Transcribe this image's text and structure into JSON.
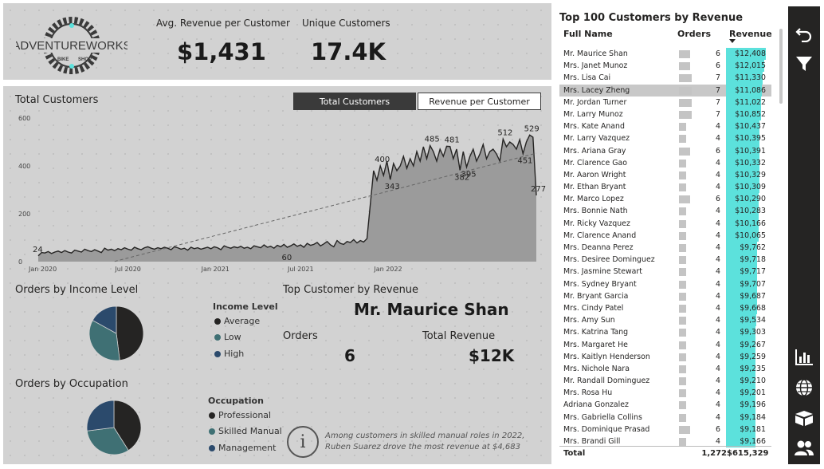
{
  "kpis": {
    "avg_revenue_label": "Avg. Revenue per Customer",
    "avg_revenue_value": "$1,431",
    "unique_customers_label": "Unique Customers",
    "unique_customers_value": "17.4K"
  },
  "logo": {
    "brand": "ADVENTUREWORKS",
    "sub_left": "BIKE",
    "sub_right": "SHOP"
  },
  "total_customers": {
    "title": "Total Customers",
    "toggle_active": "Total Customers",
    "toggle_inactive": "Revenue per Customer"
  },
  "chart_data": [
    {
      "type": "area",
      "title": "Total Customers",
      "x_ticks": [
        "Jan 2020",
        "Jul 2020",
        "Jan 2021",
        "Jul 2021",
        "Jan 2022"
      ],
      "y_ticks": [
        "0",
        "200",
        "400",
        "600"
      ],
      "ylim": [
        0,
        600
      ],
      "grid": false,
      "trendline": true,
      "values": [
        24,
        38,
        36,
        42,
        34,
        40,
        44,
        38,
        46,
        40,
        36,
        48,
        44,
        40,
        52,
        46,
        42,
        50,
        44,
        38,
        56,
        48,
        52,
        46,
        54,
        50,
        58,
        52,
        48,
        60,
        54,
        50,
        58,
        62,
        56,
        52,
        58,
        54,
        60,
        56,
        50,
        62,
        58,
        52,
        56,
        48,
        60,
        54,
        58,
        52,
        56,
        60,
        54,
        62,
        58,
        50,
        66,
        60,
        56,
        62,
        58,
        64,
        56,
        60,
        54,
        66,
        62,
        58,
        70,
        60,
        64,
        56,
        68,
        62,
        72,
        60,
        66,
        74,
        64,
        70,
        60,
        76,
        68,
        72,
        80,
        66,
        74,
        84,
        70,
        62,
        88,
        76,
        72,
        84,
        80,
        92,
        78,
        88,
        82,
        96,
        240,
        380,
        340,
        400,
        360,
        420,
        343,
        410,
        380,
        400,
        440,
        390,
        430,
        400,
        460,
        420,
        480,
        430,
        485,
        460,
        420,
        470,
        440,
        482,
        481,
        430,
        470,
        382,
        460,
        395,
        440,
        470,
        420,
        450,
        490,
        430,
        460,
        470,
        450,
        420,
        512,
        480,
        500,
        490,
        470,
        510,
        451,
        500,
        529,
        520,
        277
      ],
      "annotations": [
        {
          "label": "24",
          "value": 24
        },
        {
          "label": "60",
          "value": 60
        },
        {
          "label": "400",
          "value": 400
        },
        {
          "label": "343",
          "value": 343
        },
        {
          "label": "485",
          "value": 485
        },
        {
          "label": "382",
          "value": 382
        },
        {
          "label": "481",
          "value": 481
        },
        {
          "label": "395",
          "value": 395
        },
        {
          "label": "512",
          "value": 512
        },
        {
          "label": "451",
          "value": 451
        },
        {
          "label": "529",
          "value": 529
        },
        {
          "label": "277",
          "value": 277
        }
      ]
    },
    {
      "type": "pie",
      "title": "Orders by Income Level",
      "series": [
        {
          "name": "Average",
          "value": 48,
          "color": "#252423"
        },
        {
          "name": "Low",
          "value": 35,
          "color": "#3f7074"
        },
        {
          "name": "High",
          "value": 17,
          "color": "#2b4a6c"
        }
      ]
    },
    {
      "type": "pie",
      "title": "Orders by Occupation",
      "series": [
        {
          "name": "Professional",
          "value": 41,
          "color": "#252423"
        },
        {
          "name": "Skilled Manual",
          "value": 32,
          "color": "#3f7074"
        },
        {
          "name": "Management",
          "value": 27,
          "color": "#2b4a6c"
        }
      ]
    }
  ],
  "income": {
    "title": "Orders by Income Level",
    "legend_title": "Income Level",
    "items": [
      {
        "label": "Average",
        "color": "#252423"
      },
      {
        "label": "Low",
        "color": "#3f7074"
      },
      {
        "label": "High",
        "color": "#2b4a6c"
      }
    ]
  },
  "occupation": {
    "title": "Orders by Occupation",
    "legend_title": "Occupation",
    "items": [
      {
        "label": "Professional",
        "color": "#252423"
      },
      {
        "label": "Skilled Manual",
        "color": "#3f7074"
      },
      {
        "label": "Management",
        "color": "#2b4a6c"
      }
    ]
  },
  "top_customer": {
    "title": "Top Customer by Revenue",
    "name": "Mr. Maurice Shan",
    "orders_label": "Orders",
    "orders_value": "6",
    "revenue_label": "Total Revenue",
    "revenue_value": "$12K"
  },
  "insight": {
    "icon": "info-icon",
    "text": "Among customers in skilled manual roles in 2022, Ruben Suarez drove the most revenue at $4,683"
  },
  "table": {
    "title": "Top 100 Customers by Revenue",
    "headers": {
      "name": "Full Name",
      "orders": "Orders",
      "revenue": "Revenue"
    },
    "selected_row": 3,
    "rows": [
      {
        "name": "Mr. Maurice Shan",
        "orders": "6",
        "revenue": "$12,408",
        "rev": 12408,
        "ord": 6
      },
      {
        "name": "Mrs. Janet Munoz",
        "orders": "6",
        "revenue": "$12,015",
        "rev": 12015,
        "ord": 6
      },
      {
        "name": "Mrs. Lisa Cai",
        "orders": "7",
        "revenue": "$11,330",
        "rev": 11330,
        "ord": 7
      },
      {
        "name": "Mrs. Lacey Zheng",
        "orders": "7",
        "revenue": "$11,086",
        "rev": 11086,
        "ord": 7
      },
      {
        "name": "Mr. Jordan Turner",
        "orders": "7",
        "revenue": "$11,022",
        "rev": 11022,
        "ord": 7
      },
      {
        "name": "Mr. Larry Munoz",
        "orders": "7",
        "revenue": "$10,852",
        "rev": 10852,
        "ord": 7
      },
      {
        "name": "Mrs. Kate Anand",
        "orders": "4",
        "revenue": "$10,437",
        "rev": 10437,
        "ord": 4
      },
      {
        "name": "Mr. Larry Vazquez",
        "orders": "4",
        "revenue": "$10,395",
        "rev": 10395,
        "ord": 4
      },
      {
        "name": "Mrs. Ariana Gray",
        "orders": "6",
        "revenue": "$10,391",
        "rev": 10391,
        "ord": 6
      },
      {
        "name": "Mr. Clarence Gao",
        "orders": "4",
        "revenue": "$10,332",
        "rev": 10332,
        "ord": 4
      },
      {
        "name": "Mr. Aaron Wright",
        "orders": "4",
        "revenue": "$10,329",
        "rev": 10329,
        "ord": 4
      },
      {
        "name": "Mr. Ethan Bryant",
        "orders": "4",
        "revenue": "$10,309",
        "rev": 10309,
        "ord": 4
      },
      {
        "name": "Mr. Marco Lopez",
        "orders": "6",
        "revenue": "$10,290",
        "rev": 10290,
        "ord": 6
      },
      {
        "name": "Mrs. Bonnie Nath",
        "orders": "4",
        "revenue": "$10,283",
        "rev": 10283,
        "ord": 4
      },
      {
        "name": "Mr. Ricky Vazquez",
        "orders": "4",
        "revenue": "$10,166",
        "rev": 10166,
        "ord": 4
      },
      {
        "name": "Mr. Clarence Anand",
        "orders": "4",
        "revenue": "$10,065",
        "rev": 10065,
        "ord": 4
      },
      {
        "name": "Mrs. Deanna Perez",
        "orders": "4",
        "revenue": "$9,762",
        "rev": 9762,
        "ord": 4
      },
      {
        "name": "Mrs. Desiree Dominguez",
        "orders": "4",
        "revenue": "$9,718",
        "rev": 9718,
        "ord": 4
      },
      {
        "name": "Mrs. Jasmine Stewart",
        "orders": "4",
        "revenue": "$9,717",
        "rev": 9717,
        "ord": 4
      },
      {
        "name": "Mrs. Sydney Bryant",
        "orders": "4",
        "revenue": "$9,707",
        "rev": 9707,
        "ord": 4
      },
      {
        "name": "Mr. Bryant Garcia",
        "orders": "4",
        "revenue": "$9,687",
        "rev": 9687,
        "ord": 4
      },
      {
        "name": "Mrs. Cindy Patel",
        "orders": "4",
        "revenue": "$9,668",
        "rev": 9668,
        "ord": 4
      },
      {
        "name": "Mrs. Amy Sun",
        "orders": "4",
        "revenue": "$9,534",
        "rev": 9534,
        "ord": 4
      },
      {
        "name": "Mrs. Katrina Tang",
        "orders": "4",
        "revenue": "$9,303",
        "rev": 9303,
        "ord": 4
      },
      {
        "name": "Mrs. Margaret He",
        "orders": "4",
        "revenue": "$9,267",
        "rev": 9267,
        "ord": 4
      },
      {
        "name": "Mrs. Kaitlyn Henderson",
        "orders": "4",
        "revenue": "$9,259",
        "rev": 9259,
        "ord": 4
      },
      {
        "name": "Mrs. Nichole Nara",
        "orders": "4",
        "revenue": "$9,235",
        "rev": 9235,
        "ord": 4
      },
      {
        "name": "Mr. Randall Dominguez",
        "orders": "4",
        "revenue": "$9,210",
        "rev": 9210,
        "ord": 4
      },
      {
        "name": "Mrs. Rosa Hu",
        "orders": "4",
        "revenue": "$9,201",
        "rev": 9201,
        "ord": 4
      },
      {
        "name": "Adriana Gonzalez",
        "orders": "4",
        "revenue": "$9,196",
        "rev": 9196,
        "ord": 4
      },
      {
        "name": "Mrs. Gabriella Collins",
        "orders": "4",
        "revenue": "$9,184",
        "rev": 9184,
        "ord": 4
      },
      {
        "name": "Mrs. Dominique Prasad",
        "orders": "6",
        "revenue": "$9,181",
        "rev": 9181,
        "ord": 6
      },
      {
        "name": "Mrs. Brandi Gill",
        "orders": "4",
        "revenue": "$9,166",
        "rev": 9166,
        "ord": 4
      }
    ],
    "total": {
      "label": "Total",
      "orders": "1,272",
      "revenue": "$615,329"
    }
  },
  "nav": {
    "icons": [
      "back-arrow-icon",
      "filter-icon",
      "bar-chart-icon",
      "globe-icon",
      "box-icon",
      "users-icon"
    ]
  },
  "colors": {
    "accent": "#5ce1dc",
    "panel": "#d2d2d2",
    "nav_bg": "#252423",
    "area_fill": "#9b9b9b"
  }
}
